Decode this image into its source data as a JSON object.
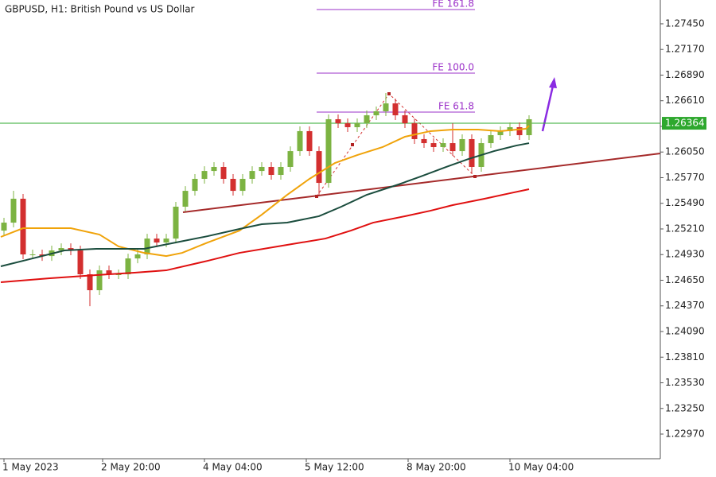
{
  "chart_data": {
    "type": "candlestick",
    "title": "GBPUSD, H1:  British Pound vs US Dollar",
    "up_color": "#7cb342",
    "down_color": "#d32f2f",
    "xlim": [
      -1.25,
      206.25
    ],
    "ylim": [
      1.22701,
      1.2771
    ],
    "grid": false,
    "xticks": [
      {
        "value": 0,
        "label": "1 May 2023"
      },
      {
        "value": 31,
        "label": "2 May 20:00"
      },
      {
        "value": 63,
        "label": "4 May 04:00"
      },
      {
        "value": 95,
        "label": "5 May 12:00"
      },
      {
        "value": 127,
        "label": "8 May 20:00"
      },
      {
        "value": 159,
        "label": "10 May 04:00"
      }
    ],
    "yticks": [
      {
        "value": 1.2745,
        "label": "1.27450"
      },
      {
        "value": 1.2717,
        "label": "1.27170"
      },
      {
        "value": 1.2689,
        "label": "1.26890"
      },
      {
        "value": 1.2661,
        "label": "1.26610"
      },
      {
        "value": 1.2633,
        "label": "1.26330"
      },
      {
        "value": 1.2605,
        "label": "1.26050"
      },
      {
        "value": 1.2577,
        "label": "1.25770"
      },
      {
        "value": 1.2549,
        "label": "1.25490"
      },
      {
        "value": 1.2521,
        "label": "1.25210"
      },
      {
        "value": 1.2493,
        "label": "1.24930"
      },
      {
        "value": 1.2465,
        "label": "1.24650"
      },
      {
        "value": 1.2437,
        "label": "1.24370"
      },
      {
        "value": 1.2409,
        "label": "1.24090"
      },
      {
        "value": 1.2381,
        "label": "1.23810"
      },
      {
        "value": 1.2353,
        "label": "1.23530"
      },
      {
        "value": 1.2325,
        "label": "1.23250"
      },
      {
        "value": 1.2297,
        "label": "1.22970"
      }
    ],
    "candles": {
      "x": [
        0,
        3,
        6,
        9,
        12,
        15,
        18,
        21,
        24,
        27,
        30,
        33,
        36,
        39,
        42,
        45,
        48,
        51,
        54,
        57,
        60,
        63,
        66,
        69,
        72,
        75,
        78,
        81,
        84,
        87,
        90,
        93,
        96,
        99,
        102,
        105,
        108,
        111,
        114,
        117,
        120,
        123,
        126,
        129,
        132,
        135,
        138,
        141,
        144,
        147,
        150,
        153,
        156,
        159,
        162,
        165
      ],
      "open": [
        1.25192,
        1.25279,
        1.2554,
        1.24932,
        1.24932,
        1.24914,
        1.24975,
        1.25001,
        1.24975,
        1.24715,
        1.24541,
        1.24758,
        1.24715,
        1.24715,
        1.24888,
        1.24932,
        1.25105,
        1.25062,
        1.25105,
        1.25453,
        1.25626,
        1.25757,
        1.25843,
        1.25887,
        1.25757,
        1.25626,
        1.25757,
        1.25843,
        1.25887,
        1.258,
        1.25887,
        1.2606,
        1.26278,
        1.2606,
        1.25713,
        1.26408,
        1.26364,
        1.26321,
        1.26364,
        1.26451,
        1.26495,
        1.26581,
        1.26451,
        1.26364,
        1.26191,
        1.26147,
        1.26104,
        1.26147,
        1.2606,
        1.26191,
        1.25887,
        1.26147,
        1.26234,
        1.26278,
        1.26321,
        1.26234
      ],
      "high": [
        1.25331,
        1.25626,
        1.25592,
        1.24984,
        1.24984,
        1.25027,
        1.25053,
        1.25053,
        1.25027,
        1.24767,
        1.2481,
        1.2481,
        1.24767,
        1.2494,
        1.24984,
        1.25157,
        1.25157,
        1.25157,
        1.25505,
        1.25678,
        1.25809,
        1.25895,
        1.25939,
        1.25939,
        1.25809,
        1.25809,
        1.25895,
        1.25939,
        1.25939,
        1.25939,
        1.26112,
        1.2633,
        1.2633,
        1.26112,
        1.2646,
        1.2646,
        1.26416,
        1.26416,
        1.26503,
        1.26547,
        1.26694,
        1.26633,
        1.26503,
        1.26416,
        1.26243,
        1.26199,
        1.26199,
        1.26364,
        1.26243,
        1.26243,
        1.26199,
        1.26286,
        1.2633,
        1.26373,
        1.26373,
        1.26451
      ],
      "low": [
        1.2514,
        1.25227,
        1.2488,
        1.2488,
        1.24862,
        1.24862,
        1.24923,
        1.24923,
        1.24663,
        1.24367,
        1.24489,
        1.24663,
        1.24663,
        1.24663,
        1.24836,
        1.2488,
        1.2501,
        1.2501,
        1.25053,
        1.25401,
        1.25574,
        1.25705,
        1.25791,
        1.25705,
        1.25574,
        1.25574,
        1.25705,
        1.25791,
        1.25748,
        1.25748,
        1.25835,
        1.26008,
        1.26008,
        1.25583,
        1.25661,
        1.26312,
        1.26269,
        1.26269,
        1.26312,
        1.26399,
        1.26443,
        1.26399,
        1.26312,
        1.26139,
        1.26095,
        1.26052,
        1.26052,
        1.26008,
        1.26008,
        1.25817,
        1.25835,
        1.26095,
        1.26182,
        1.26226,
        1.26182,
        1.26182
      ],
      "close": [
        1.25279,
        1.2554,
        1.24932,
        1.24932,
        1.24914,
        1.24975,
        1.25001,
        1.24975,
        1.24715,
        1.24541,
        1.24758,
        1.24715,
        1.24715,
        1.24888,
        1.24932,
        1.25105,
        1.25062,
        1.25105,
        1.25453,
        1.25626,
        1.25757,
        1.25843,
        1.25887,
        1.25757,
        1.25626,
        1.25757,
        1.25843,
        1.25887,
        1.258,
        1.25887,
        1.2606,
        1.26278,
        1.2606,
        1.25713,
        1.26408,
        1.26364,
        1.26321,
        1.26364,
        1.26451,
        1.26495,
        1.26581,
        1.26451,
        1.26364,
        1.26191,
        1.26147,
        1.26104,
        1.26147,
        1.2606,
        1.26191,
        1.25887,
        1.26147,
        1.26234,
        1.26278,
        1.26321,
        1.26234,
        1.26408
      ]
    },
    "series": [
      {
        "color": "#f0a30a",
        "x": [
          -1,
          6,
          21,
          30,
          36,
          44,
          51,
          56,
          64,
          74,
          81,
          89,
          96,
          104,
          111,
          119,
          126,
          134,
          141,
          149,
          156,
          164,
          165
        ],
        "values": [
          1.25123,
          1.25218,
          1.25218,
          1.25149,
          1.25019,
          1.24949,
          1.24914,
          1.24949,
          1.25062,
          1.25192,
          1.25366,
          1.25583,
          1.25757,
          1.2593,
          1.26017,
          1.26104,
          1.26217,
          1.26278,
          1.26295,
          1.26295,
          1.26278,
          1.26304,
          1.26338
        ]
      },
      {
        "color": "#1b4d3e",
        "x": [
          -1,
          9,
          19,
          29,
          44,
          54,
          64,
          74,
          81,
          89,
          99,
          106,
          114,
          124,
          131,
          139,
          146,
          154,
          161,
          165
        ],
        "values": [
          1.24802,
          1.24888,
          1.24975,
          1.24993,
          1.24993,
          1.25062,
          1.25131,
          1.2521,
          1.25262,
          1.25279,
          1.25349,
          1.25453,
          1.25583,
          1.25696,
          1.25783,
          1.25887,
          1.25974,
          1.2606,
          1.26121,
          1.26147
        ]
      },
      {
        "color": "#e01010",
        "x": [
          -1,
          14,
          29,
          41,
          51,
          64,
          74,
          89,
          101,
          109,
          116,
          126,
          134,
          141,
          151,
          159,
          165
        ],
        "values": [
          1.24628,
          1.24671,
          1.24706,
          1.24732,
          1.24758,
          1.24862,
          1.24949,
          1.25036,
          1.25105,
          1.25192,
          1.25279,
          1.25349,
          1.25409,
          1.2547,
          1.2554,
          1.256,
          1.25644
        ]
      }
    ],
    "levels": [
      {
        "label": "FE 161.8",
        "value": 1.27606
      },
      {
        "label": "FE 100.0",
        "value": 1.26911
      },
      {
        "label": "FE 61.8",
        "value": 1.26486
      }
    ],
    "levels_color": "#9b30c8",
    "last_price": 1.26364,
    "last_price_color": "#2ea82e"
  }
}
